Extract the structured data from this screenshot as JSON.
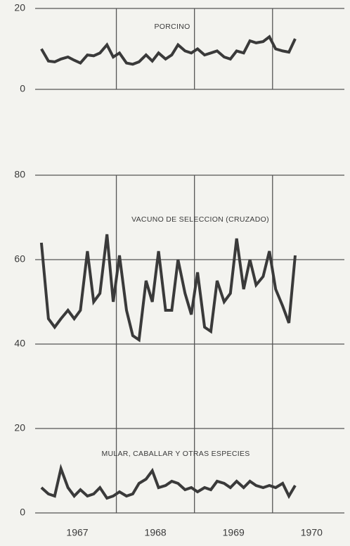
{
  "chart_data": [
    {
      "type": "line",
      "x": [
        1967.04,
        1967.13,
        1967.21,
        1967.29,
        1967.38,
        1967.46,
        1967.54,
        1967.63,
        1967.71,
        1967.79,
        1967.88,
        1967.96,
        1968.04,
        1968.13,
        1968.21,
        1968.29,
        1968.38,
        1968.46,
        1968.54,
        1968.63,
        1968.71,
        1968.79,
        1968.88,
        1968.96,
        1969.04,
        1969.13,
        1969.21,
        1969.29,
        1969.38,
        1969.46,
        1969.54,
        1969.63,
        1969.71,
        1969.79,
        1969.88,
        1969.96,
        1970.04,
        1970.13,
        1970.21,
        1970.29
      ],
      "xlim": [
        1966.96,
        1970.92
      ],
      "xgrid": [
        1968,
        1969,
        1970
      ],
      "ylim": [
        0,
        20
      ],
      "yticks": [
        0,
        20
      ],
      "series": [
        {
          "name": "PORCINO",
          "color": "#3a3a3a",
          "values": [
            10,
            7,
            6.8,
            7.5,
            8,
            7.2,
            6.5,
            8.5,
            8.3,
            9,
            11,
            8,
            9,
            6.5,
            6.2,
            6.8,
            8.5,
            7,
            9,
            7.5,
            8.5,
            11,
            9.5,
            9,
            10,
            8.5,
            9,
            9.5,
            8,
            7.5,
            9.5,
            9,
            12,
            11.5,
            11.8,
            13,
            10,
            9.5,
            9.2,
            12.5
          ]
        }
      ]
    },
    {
      "type": "line",
      "x": [
        1967.04,
        1967.13,
        1967.21,
        1967.29,
        1967.38,
        1967.46,
        1967.54,
        1967.63,
        1967.71,
        1967.79,
        1967.88,
        1967.96,
        1968.04,
        1968.13,
        1968.21,
        1968.29,
        1968.38,
        1968.46,
        1968.54,
        1968.63,
        1968.71,
        1968.79,
        1968.88,
        1968.96,
        1969.04,
        1969.13,
        1969.21,
        1969.29,
        1969.38,
        1969.46,
        1969.54,
        1969.63,
        1969.71,
        1969.79,
        1969.88,
        1969.96,
        1970.04,
        1970.13,
        1970.21,
        1970.29
      ],
      "xlim": [
        1966.96,
        1970.92
      ],
      "xgrid": [
        1968,
        1969,
        1970
      ],
      "xticks": [
        {
          "value": 1967.5,
          "label": "1967"
        },
        {
          "value": 1968.5,
          "label": "1968"
        },
        {
          "value": 1969.5,
          "label": "1969"
        },
        {
          "value": 1970.5,
          "label": "1970"
        }
      ],
      "ylim": [
        0,
        80
      ],
      "yticks": [
        0,
        20,
        40,
        60,
        80
      ],
      "series": [
        {
          "name": "VACUNO DE SELECCION (CRUZADO)",
          "color": "#3a3a3a",
          "values": [
            64,
            46,
            44,
            46,
            48,
            46,
            48,
            62,
            50,
            52,
            66,
            50,
            61,
            48,
            42,
            41,
            55,
            50,
            62,
            48,
            48,
            60,
            52,
            47,
            57,
            44,
            43,
            55,
            50,
            52,
            65,
            53,
            60,
            54,
            56,
            62,
            53,
            49,
            45,
            61
          ]
        },
        {
          "name": "MULAR, CABALLAR Y OTRAS ESPECIES",
          "color": "#3a3a3a",
          "values": [
            6,
            4.5,
            4,
            10.5,
            6,
            4,
            5.5,
            4,
            4.5,
            6,
            3.5,
            4,
            5,
            4,
            4.5,
            7,
            8,
            10,
            6,
            6.5,
            7.5,
            7,
            5.5,
            6,
            5,
            6,
            5.5,
            7.5,
            7,
            6,
            7.5,
            6,
            7.5,
            6.5,
            6,
            6.5,
            6,
            7,
            4,
            6.5
          ]
        }
      ]
    }
  ]
}
